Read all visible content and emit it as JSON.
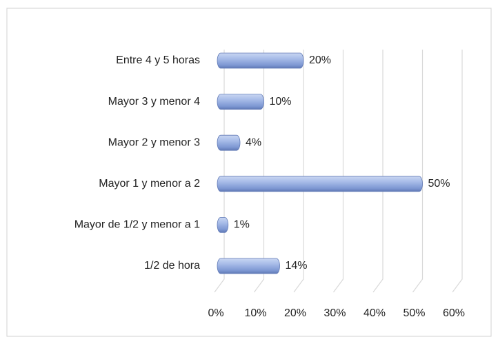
{
  "chart_data": {
    "type": "bar",
    "orientation": "horizontal",
    "categories": [
      "Entre 4 y 5 horas",
      "Mayor 3 y menor 4",
      "Mayor 2 y menor 3",
      "Mayor 1 y menor a 2",
      "Mayor de 1/2 y menor a 1",
      "1/2 de hora"
    ],
    "values": [
      20,
      10,
      4,
      50,
      1,
      14
    ],
    "value_labels": [
      "20%",
      "10%",
      "4%",
      "50%",
      "1%",
      "14%"
    ],
    "color": "#8ea6dc",
    "xlim": [
      0,
      60
    ],
    "xticks": [
      {
        "value": 0,
        "label": "0%"
      },
      {
        "value": 10,
        "label": "10%"
      },
      {
        "value": 20,
        "label": "20%"
      },
      {
        "value": 30,
        "label": "30%"
      },
      {
        "value": 40,
        "label": "40%"
      },
      {
        "value": 50,
        "label": "50%"
      },
      {
        "value": 60,
        "label": "60%"
      }
    ],
    "grid": true
  }
}
